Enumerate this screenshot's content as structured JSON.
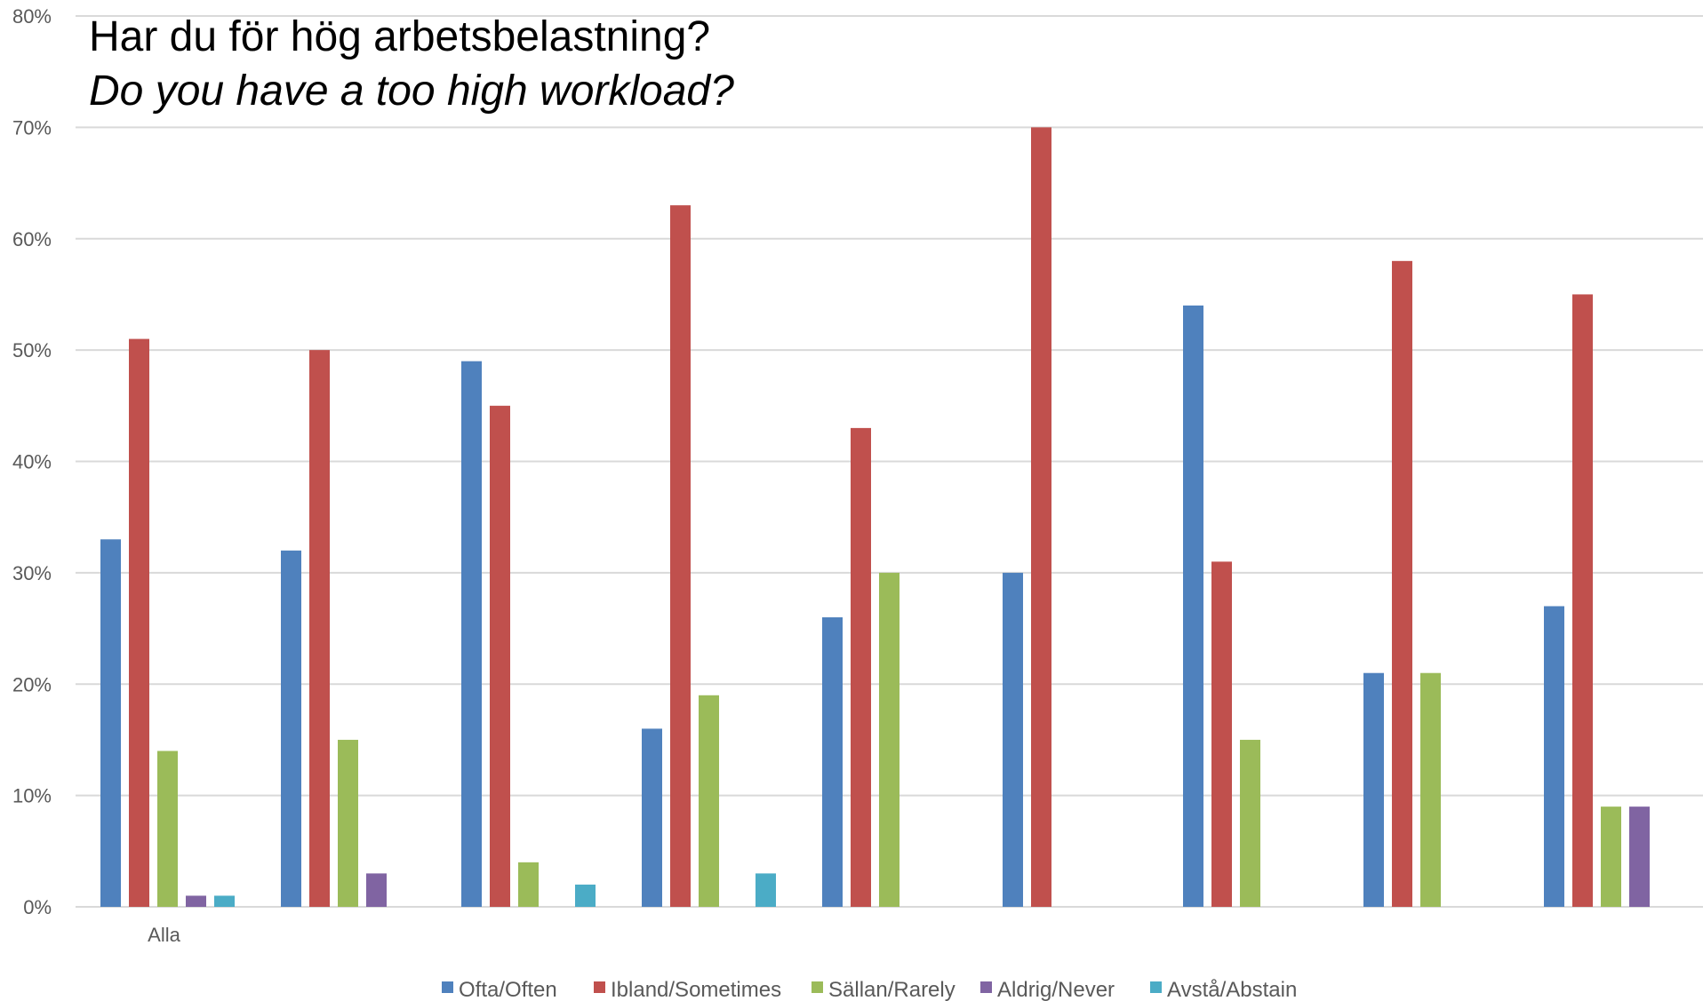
{
  "chart_data": {
    "type": "bar",
    "title": "Har du för hög arbetsbelastning?",
    "subtitle": "Do you have a too high workload?",
    "categories": [
      "Alla",
      "",
      "",
      "",
      "",
      "",
      "",
      "",
      ""
    ],
    "ylim": [
      0,
      80
    ],
    "yticks": [
      "0%",
      "10%",
      "20%",
      "30%",
      "40%",
      "50%",
      "60%",
      "70%",
      "80%"
    ],
    "ytick_values": [
      0,
      10,
      20,
      30,
      40,
      50,
      60,
      70,
      80
    ],
    "grid": true,
    "legend_position": "bottom",
    "series": [
      {
        "name": "Ofta/Often",
        "color": "#4f81bd",
        "values": [
          33,
          32,
          49,
          16,
          26,
          30,
          54,
          21,
          27
        ]
      },
      {
        "name": "Ibland/Sometimes",
        "color": "#c0504d",
        "values": [
          51,
          50,
          45,
          63,
          43,
          70,
          31,
          58,
          55
        ]
      },
      {
        "name": "Sällan/Rarely",
        "color": "#9bbb59",
        "values": [
          14,
          15,
          4,
          19,
          30,
          0,
          15,
          21,
          9
        ]
      },
      {
        "name": "Aldrig/Never",
        "color": "#8064a2",
        "values": [
          1,
          3,
          0,
          0,
          0,
          0,
          0,
          0,
          9
        ]
      },
      {
        "name": "Avstå/Abstain",
        "color": "#4bacc6",
        "values": [
          1,
          0,
          2,
          3,
          0,
          0,
          0,
          0,
          0
        ]
      }
    ]
  }
}
